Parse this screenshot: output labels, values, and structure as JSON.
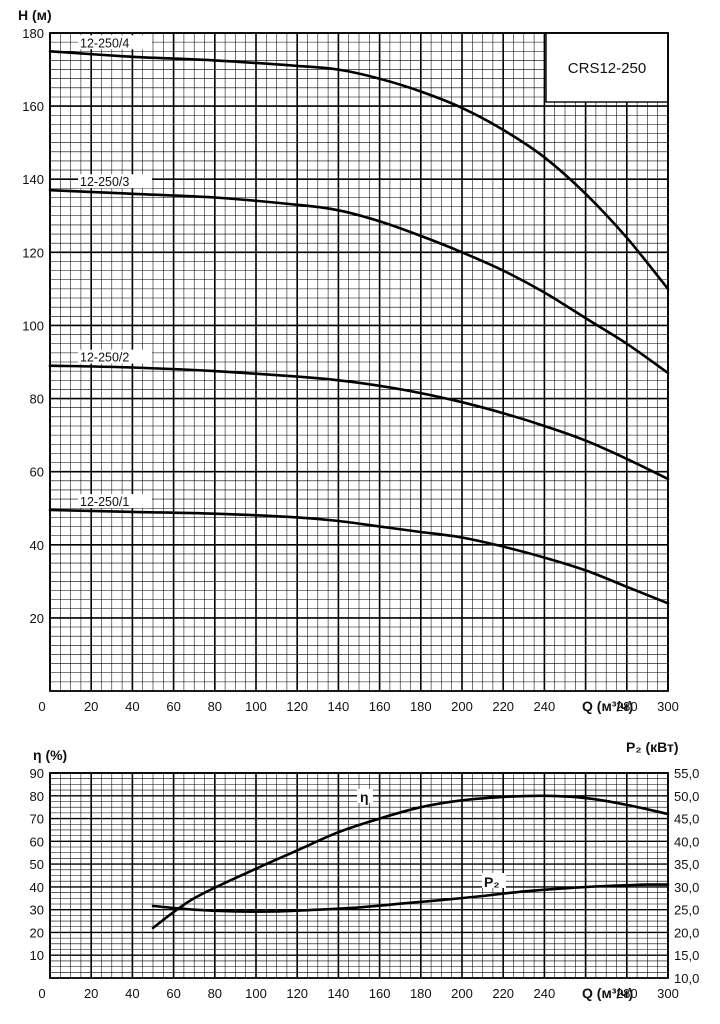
{
  "chart_data": [
    {
      "type": "line",
      "title": "",
      "model_label": "CRS12-250",
      "xlabel": "Q (м³/ч)",
      "ylabel": "H (м)",
      "xlim": [
        0,
        300
      ],
      "ylim": [
        0,
        180
      ],
      "x_ticks": [
        0,
        20,
        40,
        60,
        80,
        100,
        120,
        140,
        160,
        180,
        200,
        220,
        240,
        260,
        280,
        300
      ],
      "y_ticks": [
        20,
        40,
        60,
        80,
        100,
        120,
        140,
        160,
        180
      ],
      "grid": true,
      "series": [
        {
          "name": "12-250/4",
          "x": [
            0,
            40,
            80,
            120,
            140,
            160,
            180,
            200,
            220,
            240,
            260,
            280,
            300
          ],
          "values": [
            175,
            173.5,
            172.5,
            171,
            170,
            167.5,
            164,
            159.5,
            153.5,
            146,
            136,
            124,
            110
          ]
        },
        {
          "name": "12-250/3",
          "x": [
            0,
            40,
            80,
            120,
            140,
            160,
            180,
            200,
            220,
            240,
            260,
            280,
            300
          ],
          "values": [
            137,
            136,
            135,
            133,
            131.5,
            128.5,
            124.5,
            120,
            115,
            109,
            102,
            95,
            87
          ]
        },
        {
          "name": "12-250/2",
          "x": [
            0,
            40,
            80,
            120,
            140,
            160,
            180,
            200,
            220,
            240,
            260,
            280,
            300
          ],
          "values": [
            89,
            88.5,
            87.5,
            86,
            85,
            83.5,
            81.5,
            79,
            76,
            72.5,
            68.5,
            63.5,
            58
          ]
        },
        {
          "name": "12-250/1",
          "x": [
            0,
            40,
            80,
            120,
            140,
            160,
            180,
            200,
            220,
            240,
            260,
            280,
            300
          ],
          "values": [
            49.5,
            49,
            48.5,
            47.5,
            46.5,
            45,
            43.5,
            42,
            39.5,
            36.5,
            33,
            28.5,
            24
          ]
        }
      ]
    },
    {
      "type": "line",
      "title": "",
      "xlabel": "Q (м³/ч)",
      "ylabel": "η (%)",
      "y2label": "P₂ (кВт)",
      "xlim": [
        0,
        300
      ],
      "ylim": [
        0,
        90
      ],
      "y2lim": [
        10,
        55
      ],
      "x_ticks": [
        0,
        20,
        40,
        60,
        80,
        100,
        120,
        140,
        160,
        180,
        200,
        220,
        240,
        260,
        280,
        300
      ],
      "y_ticks": [
        10,
        20,
        30,
        40,
        50,
        60,
        70,
        80,
        90
      ],
      "y2_ticks": [
        "10,0",
        "15,0",
        "20,0",
        "25,0",
        "30,0",
        "35,0",
        "40,0",
        "45,0",
        "50,0",
        "55,0"
      ],
      "grid": true,
      "series": [
        {
          "name": "η",
          "axis": "left",
          "x": [
            50,
            70,
            100,
            120,
            140,
            160,
            180,
            200,
            220,
            240,
            260,
            280,
            300
          ],
          "values": [
            22,
            35,
            48,
            56,
            64,
            70,
            75,
            78,
            79.5,
            80,
            79,
            76,
            72
          ]
        },
        {
          "name": "P₂",
          "axis": "right",
          "x": [
            50,
            70,
            90,
            110,
            130,
            150,
            170,
            190,
            210,
            230,
            250,
            270,
            290,
            300
          ],
          "values": [
            25.8,
            25,
            24.6,
            24.6,
            25,
            25.5,
            26.3,
            27.1,
            28,
            29,
            29.7,
            30.2,
            30.5,
            30.5
          ]
        }
      ]
    }
  ]
}
